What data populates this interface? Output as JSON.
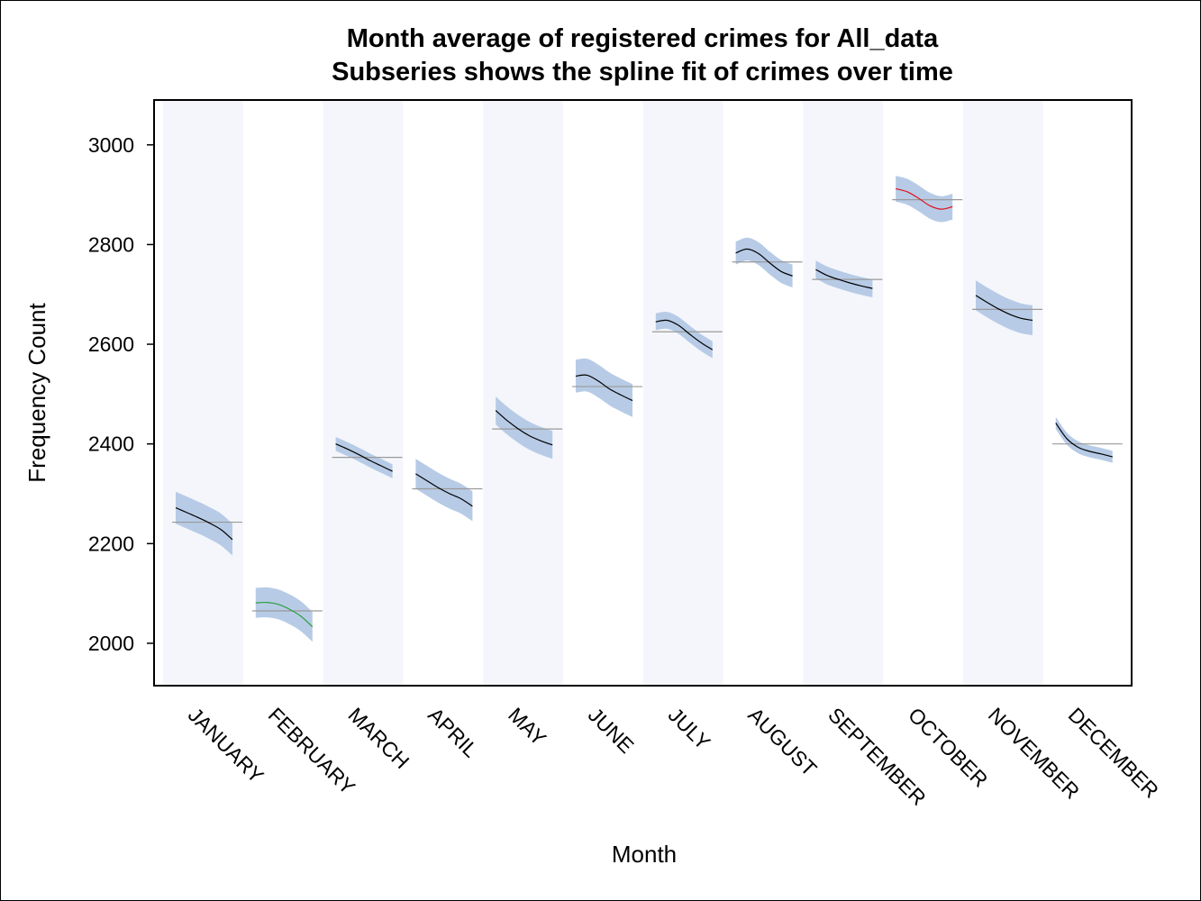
{
  "chart_data": {
    "type": "line",
    "title": "Month average of registered crimes for All_data",
    "subtitle": "Subseries shows the spline fit of crimes over time",
    "xlabel": "Month",
    "ylabel": "Frequency Count",
    "ylim": [
      1915,
      3090
    ],
    "yticks": [
      "2000",
      "2200",
      "2400",
      "2600",
      "2800",
      "3000"
    ],
    "grid": false,
    "band_color": "#f4f6fb",
    "ci_color": "#b7cbe6",
    "mean_line_color": "#9a9a9a",
    "categories": [
      "JANUARY",
      "FEBRUARY",
      "MARCH",
      "APRIL",
      "MAY",
      "JUNE",
      "JULY",
      "AUGUST",
      "SEPTEMBER",
      "OCTOBER",
      "NOVEMBER",
      "DECEMBER"
    ],
    "series": [
      {
        "month": "JANUARY",
        "mean": 2243,
        "fit": [
          2272,
          2262,
          2252,
          2241,
          2228,
          2208
        ],
        "ci_halfwidth": 32,
        "color": "#000000"
      },
      {
        "month": "FEBRUARY",
        "mean": 2065,
        "fit": [
          2081,
          2082,
          2078,
          2068,
          2054,
          2033
        ],
        "ci_halfwidth": 30,
        "color": "#2e9e3e"
      },
      {
        "month": "MARCH",
        "mean": 2373,
        "fit": [
          2400,
          2390,
          2379,
          2367,
          2356,
          2345
        ],
        "ci_halfwidth": 14,
        "color": "#000000"
      },
      {
        "month": "APRIL",
        "mean": 2310,
        "fit": [
          2340,
          2326,
          2312,
          2300,
          2290,
          2275
        ],
        "ci_halfwidth": 30,
        "color": "#000000"
      },
      {
        "month": "MAY",
        "mean": 2430,
        "fit": [
          2467,
          2447,
          2430,
          2416,
          2406,
          2398
        ],
        "ci_halfwidth": 28,
        "color": "#000000"
      },
      {
        "month": "JUNE",
        "mean": 2515,
        "fit": [
          2536,
          2538,
          2526,
          2510,
          2498,
          2487
        ],
        "ci_halfwidth": 33,
        "color": "#000000"
      },
      {
        "month": "JULY",
        "mean": 2625,
        "fit": [
          2645,
          2648,
          2638,
          2620,
          2603,
          2589
        ],
        "ci_halfwidth": 17,
        "color": "#000000"
      },
      {
        "month": "AUGUST",
        "mean": 2765,
        "fit": [
          2783,
          2791,
          2782,
          2763,
          2746,
          2737
        ],
        "ci_halfwidth": 23,
        "color": "#000000"
      },
      {
        "month": "SEPTEMBER",
        "mean": 2730,
        "fit": [
          2750,
          2738,
          2730,
          2723,
          2717,
          2712
        ],
        "ci_halfwidth": 18,
        "color": "#000000"
      },
      {
        "month": "OCTOBER",
        "mean": 2890,
        "fit": [
          2912,
          2906,
          2893,
          2878,
          2871,
          2876
        ],
        "ci_halfwidth": 26,
        "color": "#e0101a"
      },
      {
        "month": "NOVEMBER",
        "mean": 2670,
        "fit": [
          2698,
          2684,
          2671,
          2660,
          2652,
          2648
        ],
        "ci_halfwidth": 30,
        "color": "#000000"
      },
      {
        "month": "DECEMBER",
        "mean": 2400,
        "fit": [
          2442,
          2410,
          2393,
          2385,
          2380,
          2374
        ],
        "ci_halfwidth": 12,
        "color": "#000000"
      }
    ]
  }
}
